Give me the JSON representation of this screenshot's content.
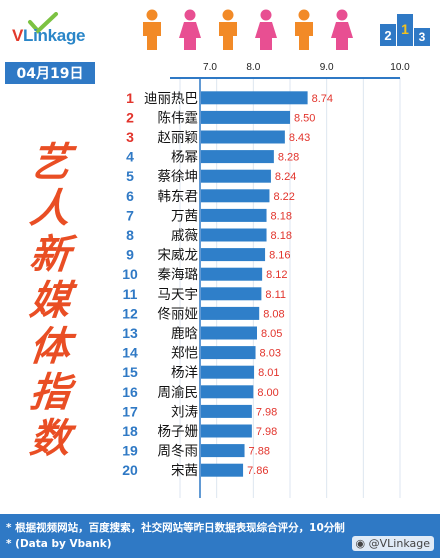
{
  "brand": {
    "logo_v": "V",
    "logo_rest": "Linkage",
    "podium_text": "2 1 3"
  },
  "date_label": "04月19日",
  "title_chars": [
    "艺",
    "人",
    "新",
    "媒",
    "体",
    "指",
    "数"
  ],
  "footer": {
    "note1": "* 根据视频网站，百度搜索，社交网站等昨日数据表现综合评分，10分制",
    "note2": "* (Data by Vbank)",
    "handle": "@VLinkage"
  },
  "colors": {
    "bar": "#2f7fc9",
    "value_text": "#e2342c",
    "rank_top": "#e2342c",
    "rank_other": "#2f79c5",
    "people_orange": "#f28a27",
    "people_pink": "#e84f92",
    "panel": "#2f79c5"
  },
  "chart_data": {
    "type": "bar",
    "orientation": "horizontal",
    "xlim": [
      7.0,
      10.0
    ],
    "xticks": [
      "7.0",
      "8.0",
      "9.0",
      "10.0"
    ],
    "ranks": [
      "1",
      "2",
      "3",
      "4",
      "5",
      "6",
      "7",
      "8",
      "9",
      "10",
      "11",
      "12",
      "13",
      "14",
      "15",
      "16",
      "17",
      "18",
      "19",
      "20"
    ],
    "categories": [
      "迪丽热巴",
      "陈伟霆",
      "赵丽颖",
      "杨幂",
      "蔡徐坤",
      "韩东君",
      "万茜",
      "戚薇",
      "宋威龙",
      "秦海璐",
      "马天宇",
      "佟丽娅",
      "鹿晗",
      "郑恺",
      "杨洋",
      "周渝民",
      "刘涛",
      "杨子姗",
      "周冬雨",
      "宋茜"
    ],
    "values": [
      8.74,
      8.5,
      8.43,
      8.28,
      8.24,
      8.22,
      8.18,
      8.18,
      8.16,
      8.12,
      8.11,
      8.08,
      8.05,
      8.03,
      8.01,
      8.0,
      7.98,
      7.98,
      7.88,
      7.86
    ],
    "value_labels": [
      "8.74",
      "8.50",
      "8.43",
      "8.28",
      "8.24",
      "8.22",
      "8.18",
      "8.18",
      "8.16",
      "8.12",
      "8.11",
      "8.08",
      "8.05",
      "8.03",
      "8.01",
      "8.00",
      "7.98",
      "7.98",
      "7.88",
      "7.86"
    ],
    "grid": true
  }
}
